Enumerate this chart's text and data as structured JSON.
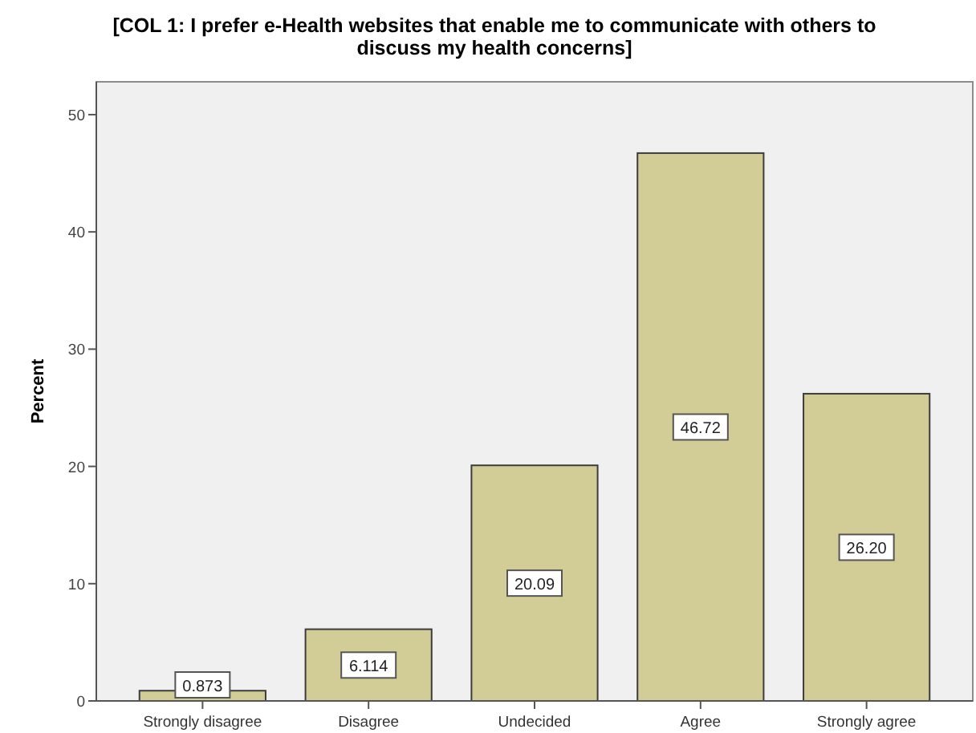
{
  "chart_data": {
    "type": "bar",
    "title": "[COL 1: I prefer e-Health websites that enable me to communicate with others to\ndiscuss my health concerns]",
    "ylabel": "Percent",
    "categories": [
      "Strongly disagree",
      "Disagree",
      "Undecided",
      "Agree",
      "Strongly agree"
    ],
    "values": [
      0.873,
      6.114,
      20.09,
      46.72,
      26.2
    ],
    "value_labels": [
      "0.873",
      "6.114",
      "20.09",
      "46.72",
      "26.20"
    ],
    "color": "#d2cd96",
    "ylim": [
      0,
      52.8
    ],
    "yticks": [
      0,
      10,
      20,
      30,
      40,
      50
    ],
    "grid": false
  }
}
